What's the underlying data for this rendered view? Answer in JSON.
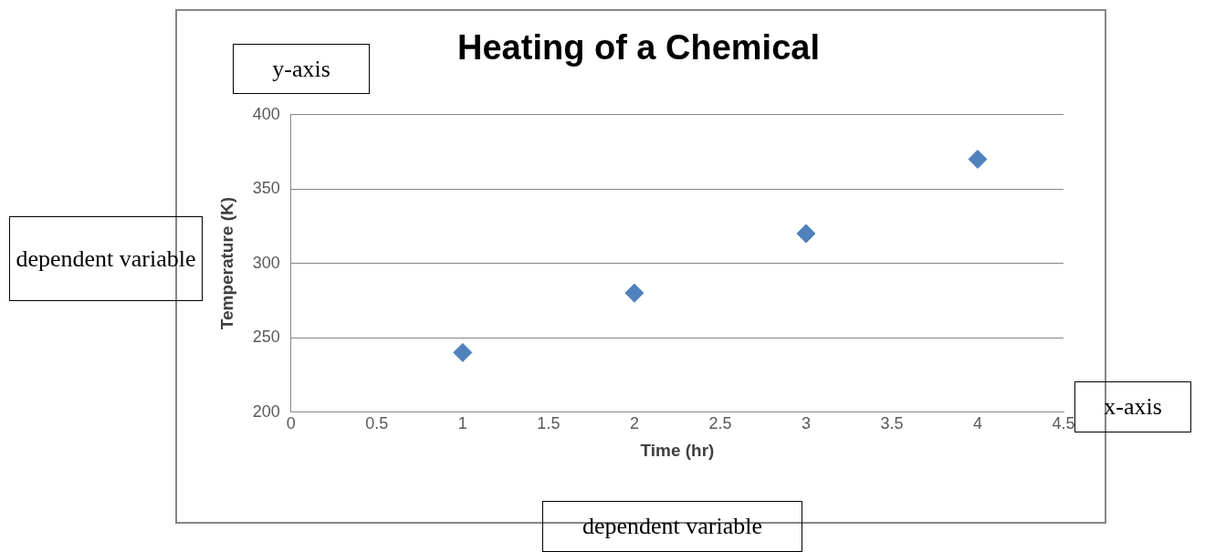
{
  "chart_data": {
    "type": "scatter",
    "title": "Heating of a Chemical",
    "xlabel": "Time (hr)",
    "ylabel": "Temperature (K)",
    "x": [
      1,
      2,
      3,
      4
    ],
    "values": [
      240,
      280,
      320,
      370
    ],
    "color": "#4f81bd",
    "marker": "diamond",
    "xlim": [
      0,
      4.5
    ],
    "xticks": [
      0,
      0.5,
      1,
      1.5,
      2,
      2.5,
      3,
      3.5,
      4,
      4.5
    ],
    "ylim": [
      200,
      400
    ],
    "yticks": [
      200,
      250,
      300,
      350,
      400
    ],
    "grid": "y",
    "annotations": [
      "y-axis",
      "dependent variable",
      "x-axis",
      "dependent variable"
    ]
  }
}
